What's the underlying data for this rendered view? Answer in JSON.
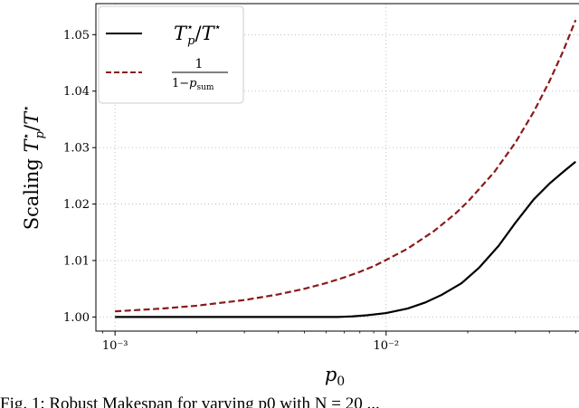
{
  "chart_data": {
    "type": "line",
    "xscale": "log",
    "xlim": [
      0.00085,
      0.056
    ],
    "ylim": [
      0.9975,
      1.0555
    ],
    "xticks": [
      0.001,
      0.01
    ],
    "xtick_labels": [
      "10⁻³",
      "10⁻²"
    ],
    "yticks": [
      1.0,
      1.01,
      1.02,
      1.03,
      1.04,
      1.05
    ],
    "ytick_labels": [
      "1.00",
      "1.01",
      "1.02",
      "1.03",
      "1.04",
      "1.05"
    ],
    "grid": true,
    "legend_position": "top-left",
    "xlabel": "p0",
    "ylabel": "Scaling T*p/T*",
    "series": [
      {
        "name": "T*p/T*",
        "color": "#000000",
        "style": "solid",
        "points": [
          [
            0.001,
            1.0
          ],
          [
            0.002,
            1.0
          ],
          [
            0.004,
            1.0
          ],
          [
            0.0066,
            1.0
          ],
          [
            0.0075,
            1.0001
          ],
          [
            0.0085,
            1.0003
          ],
          [
            0.01,
            1.0007
          ],
          [
            0.012,
            1.0015
          ],
          [
            0.014,
            1.0026
          ],
          [
            0.016,
            1.0039
          ],
          [
            0.019,
            1.006
          ],
          [
            0.022,
            1.0087
          ],
          [
            0.026,
            1.0126
          ],
          [
            0.03,
            1.0167
          ],
          [
            0.035,
            1.0208
          ],
          [
            0.04,
            1.0236
          ],
          [
            0.045,
            1.0257
          ],
          [
            0.05,
            1.0275
          ]
        ]
      },
      {
        "name": "1/(1−p_sum)",
        "color": "#8b1a1a",
        "style": "dashed",
        "points": [
          [
            0.001,
            1.001
          ],
          [
            0.0015,
            1.0015
          ],
          [
            0.002,
            1.002
          ],
          [
            0.003,
            1.003
          ],
          [
            0.004,
            1.004
          ],
          [
            0.005,
            1.005
          ],
          [
            0.006,
            1.006
          ],
          [
            0.007,
            1.007
          ],
          [
            0.008,
            1.008
          ],
          [
            0.009,
            1.009
          ],
          [
            0.01,
            1.0101
          ],
          [
            0.012,
            1.0121
          ],
          [
            0.015,
            1.0152
          ],
          [
            0.018,
            1.0183
          ],
          [
            0.02,
            1.0204
          ],
          [
            0.025,
            1.0256
          ],
          [
            0.03,
            1.0309
          ],
          [
            0.035,
            1.0363
          ],
          [
            0.04,
            1.0417
          ],
          [
            0.045,
            1.0471
          ],
          [
            0.05,
            1.0526
          ]
        ]
      }
    ]
  },
  "caption": "Fig. 1: Robust Makespan for varying p0 with N = 20 ..."
}
